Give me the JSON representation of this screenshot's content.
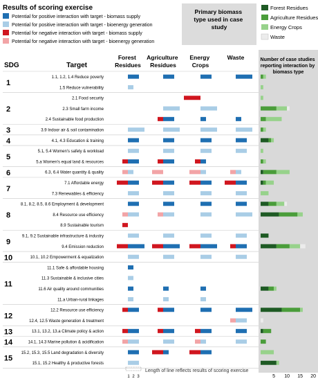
{
  "legend_scoring": {
    "title": "Results of scoring exercise",
    "items": [
      {
        "label": "Potential for positive interaction with target - biomass supply",
        "color": "#1f6fb2"
      },
      {
        "label": "Potential for positive interaction with target - bioenergy generation",
        "color": "#a9cde6"
      },
      {
        "label": "Potential for negative interaction with target - biomass supply",
        "color": "#d0161f"
      },
      {
        "label": "Potential for negative interaction with target - bioenergy generation",
        "color": "#f2a4a6"
      }
    ]
  },
  "legend_biomass": {
    "title": "Primary biomass type used in case study",
    "items": [
      {
        "label": "Forest Residues",
        "color": "#1e5a24"
      },
      {
        "label": "Agriculture Residues",
        "color": "#4a9d3a"
      },
      {
        "label": "Energy Crops",
        "color": "#97d28b"
      },
      {
        "label": "Waste",
        "color": "#ececec"
      }
    ]
  },
  "headers": {
    "sdg": "SDG",
    "target": "Target",
    "categories": [
      "Forest Residues",
      "Agriculture Residues",
      "Energy Crops",
      "Waste"
    ],
    "cases": "Number of case studies reporting interaction by biomass type"
  },
  "footer": {
    "scale_ticks": [
      "1",
      "2",
      "3"
    ],
    "note": "Length of line reflects results of scoring exercise"
  },
  "chart_data": {
    "type": "bar",
    "x_axis": {
      "ticks": [
        5,
        10,
        15,
        20
      ],
      "range": [
        0,
        21
      ]
    },
    "categories_biomass": [
      "Forest Residues",
      "Agriculture Residues",
      "Energy Crops",
      "Waste"
    ],
    "sdg_groups": [
      {
        "label": "1",
        "rows": [
          0,
          1
        ]
      },
      {
        "label": "2",
        "rows": [
          2,
          3,
          4
        ]
      },
      {
        "label": "3",
        "rows": [
          5
        ]
      },
      {
        "label": "4",
        "rows": [
          6
        ]
      },
      {
        "label": "5",
        "rows": [
          7,
          8
        ]
      },
      {
        "label": "6",
        "rows": [
          9
        ]
      },
      {
        "label": "7",
        "rows": [
          10,
          11
        ]
      },
      {
        "label": "8",
        "rows": [
          12,
          13,
          14
        ]
      },
      {
        "label": "9",
        "rows": [
          15,
          16
        ]
      },
      {
        "label": "10",
        "rows": [
          17
        ]
      },
      {
        "label": "11",
        "rows": [
          18,
          19,
          20,
          21
        ]
      },
      {
        "label": "12",
        "rows": [
          22,
          23
        ]
      },
      {
        "label": "13",
        "rows": [
          24
        ]
      },
      {
        "label": "14",
        "rows": [
          25
        ]
      },
      {
        "label": "15",
        "rows": [
          26,
          27
        ]
      }
    ],
    "rows": [
      {
        "target": "1.1, 1.2, 1.4 Reduce poverty",
        "scores": [
          {
            "n": 0,
            "p": 2
          },
          {
            "n": 0,
            "p": 2
          },
          {
            "n": 0,
            "p": 2
          },
          {
            "n": 0,
            "p": 3
          }
        ],
        "cases": [
          0,
          1,
          1,
          0
        ]
      },
      {
        "target": "1.5 Reduce vulnerability",
        "scores": [
          {
            "n": 0,
            "p": 1
          },
          {
            "n": 0,
            "p": 0
          },
          {
            "n": 0,
            "p": 0
          },
          {
            "n": 0,
            "p": 0
          }
        ],
        "cases": [
          0,
          0,
          1,
          0
        ]
      },
      {
        "target": "2.1 Food security",
        "scores": [
          {
            "n": 0,
            "p": 0
          },
          {
            "n": 0,
            "p": 0
          },
          {
            "n": 3,
            "p": 0
          },
          {
            "n": 0,
            "p": 0
          }
        ],
        "cases": [
          0,
          0,
          1,
          0
        ]
      },
      {
        "target": "2.3 Small farm income",
        "scores": [
          {
            "n": 0,
            "p": 0
          },
          {
            "n": 0,
            "p": 3
          },
          {
            "n": 0,
            "p": 3
          },
          {
            "n": 0,
            "p": 0
          }
        ],
        "cases": [
          0,
          6,
          4,
          1
        ]
      },
      {
        "target": "2.4 Sustainable food production",
        "scores": [
          {
            "n": 0,
            "p": 0
          },
          {
            "n": 1,
            "p": 2
          },
          {
            "n": 0,
            "p": 1
          },
          {
            "n": 0,
            "p": 1
          }
        ],
        "cases": [
          0,
          2,
          6,
          0
        ]
      },
      {
        "target": "3.9 Indoor air & soil contamination",
        "scores": [
          {
            "n": 0,
            "p": 3
          },
          {
            "n": 0,
            "p": 3
          },
          {
            "n": 0,
            "p": 3
          },
          {
            "n": 0,
            "p": 3
          }
        ],
        "cases": [
          0,
          1,
          1,
          0
        ]
      },
      {
        "target": "4.1, 4.3 Education & training",
        "scores": [
          {
            "n": 0,
            "p": 2
          },
          {
            "n": 0,
            "p": 2
          },
          {
            "n": 0,
            "p": 2
          },
          {
            "n": 0,
            "p": 2
          }
        ],
        "cases": [
          3,
          1,
          1,
          0
        ]
      },
      {
        "target": "5.1, 5.4 Women's safety & workload",
        "scores": [
          {
            "n": 0,
            "p": 2
          },
          {
            "n": 0,
            "p": 2
          },
          {
            "n": 0,
            "p": 2
          },
          {
            "n": 0,
            "p": 2
          }
        ],
        "cases": [
          0,
          0,
          1,
          0
        ]
      },
      {
        "target": "5.a Women's equal land & resources",
        "scores": [
          {
            "n": 1,
            "p": 2
          },
          {
            "n": 1,
            "p": 2
          },
          {
            "n": 1,
            "p": 1
          },
          {
            "n": 0,
            "p": 0
          }
        ],
        "cases": [
          0,
          1,
          1,
          0
        ]
      },
      {
        "target": "6.3, 6.4 Water quantity & quality",
        "scores": [
          {
            "n": 1,
            "p": 1
          },
          {
            "n": 2,
            "p": 0
          },
          {
            "n": 2,
            "p": 1
          },
          {
            "n": 1,
            "p": 1
          }
        ],
        "cases": [
          1,
          5,
          5,
          0
        ]
      },
      {
        "target": "7.1 Affordable energy",
        "scores": [
          {
            "n": 2,
            "p": 2
          },
          {
            "n": 2,
            "p": 2
          },
          {
            "n": 2,
            "p": 2
          },
          {
            "n": 2,
            "p": 2
          }
        ],
        "cases": [
          1,
          1,
          3,
          0
        ]
      },
      {
        "target": "7.3 Renewables & efficiency",
        "scores": [
          {
            "n": 0,
            "p": 2
          },
          {
            "n": 0,
            "p": 2
          },
          {
            "n": 0,
            "p": 2
          },
          {
            "n": 0,
            "p": 2
          }
        ],
        "cases": [
          0,
          0,
          3,
          0
        ]
      },
      {
        "target": "8.1, 8.2, 8.5, 8.6 Employment & development",
        "scores": [
          {
            "n": 0,
            "p": 2
          },
          {
            "n": 0,
            "p": 2
          },
          {
            "n": 0,
            "p": 2
          },
          {
            "n": 0,
            "p": 2
          }
        ],
        "cases": [
          3,
          3,
          3,
          1
        ]
      },
      {
        "target": "8.4 Resource use efficiency",
        "scores": [
          {
            "n": 1,
            "p": 2
          },
          {
            "n": 1,
            "p": 2
          },
          {
            "n": 0,
            "p": 2
          },
          {
            "n": 0,
            "p": 3
          }
        ],
        "cases": [
          7,
          7,
          2,
          0
        ]
      },
      {
        "target": "8.9 Sustainable tourism",
        "scores": [
          {
            "n": 1,
            "p": 0
          },
          {
            "n": 0,
            "p": 0
          },
          {
            "n": 0,
            "p": 0
          },
          {
            "n": 0,
            "p": 0
          }
        ],
        "cases": [
          0,
          0,
          0,
          0
        ]
      },
      {
        "target": "9.1, 9.2 Sustainable infrastructure & industry",
        "scores": [
          {
            "n": 0,
            "p": 2
          },
          {
            "n": 0,
            "p": 2
          },
          {
            "n": 0,
            "p": 2
          },
          {
            "n": 0,
            "p": 2
          }
        ],
        "cases": [
          3,
          0,
          0,
          0
        ]
      },
      {
        "target": "9.4 Emission reduction",
        "scores": [
          {
            "n": 2,
            "p": 3
          },
          {
            "n": 2,
            "p": 3
          },
          {
            "n": 2,
            "p": 3
          },
          {
            "n": 1,
            "p": 2
          }
        ],
        "cases": [
          6,
          5,
          4,
          2
        ]
      },
      {
        "target": "10.1, 10.2 Empowerment & equalization",
        "scores": [
          {
            "n": 0,
            "p": 2
          },
          {
            "n": 0,
            "p": 2
          },
          {
            "n": 0,
            "p": 2
          },
          {
            "n": 0,
            "p": 2
          }
        ],
        "cases": [
          0,
          0,
          0,
          0
        ]
      },
      {
        "target": "11.1 Safe & affordable housing",
        "scores": [
          {
            "n": 0,
            "p": 1
          },
          {
            "n": 0,
            "p": 0
          },
          {
            "n": 0,
            "p": 0
          },
          {
            "n": 0,
            "p": 0
          }
        ],
        "cases": [
          0,
          0,
          0,
          0
        ]
      },
      {
        "target": "11.3 Sustainable & inclusive cities",
        "scores": [
          {
            "n": 0,
            "p": 1
          },
          {
            "n": 0,
            "p": 0
          },
          {
            "n": 0,
            "p": 0
          },
          {
            "n": 0,
            "p": 0
          }
        ],
        "cases": [
          0,
          0,
          0,
          0
        ]
      },
      {
        "target": "11.6 Air quality around communities",
        "scores": [
          {
            "n": 0,
            "p": 1
          },
          {
            "n": 0,
            "p": 1
          },
          {
            "n": 0,
            "p": 1
          },
          {
            "n": 0,
            "p": 0
          }
        ],
        "cases": [
          3,
          2,
          1,
          0
        ]
      },
      {
        "target": "11.a Urban-rural linkages",
        "scores": [
          {
            "n": 0,
            "p": 1
          },
          {
            "n": 0,
            "p": 1
          },
          {
            "n": 0,
            "p": 1
          },
          {
            "n": 0,
            "p": 0
          }
        ],
        "cases": [
          0,
          0,
          0,
          0
        ]
      },
      {
        "target": "12.2 Resource use efficiency",
        "scores": [
          {
            "n": 1,
            "p": 2
          },
          {
            "n": 1,
            "p": 2
          },
          {
            "n": 0,
            "p": 2
          },
          {
            "n": 0,
            "p": 3
          }
        ],
        "cases": [
          8,
          7,
          1,
          0
        ]
      },
      {
        "target": "12.4, 12.5 Waste generation & treatment",
        "scores": [
          {
            "n": 0,
            "p": 0
          },
          {
            "n": 0,
            "p": 0
          },
          {
            "n": 0,
            "p": 0
          },
          {
            "n": 1,
            "p": 2
          }
        ],
        "cases": [
          0,
          0,
          0,
          1
        ]
      },
      {
        "target": "13.1, 13.2, 13.a Climate policy & action",
        "scores": [
          {
            "n": 1,
            "p": 2
          },
          {
            "n": 1,
            "p": 2
          },
          {
            "n": 1,
            "p": 2
          },
          {
            "n": 0,
            "p": 2
          }
        ],
        "cases": [
          1,
          3,
          0,
          0
        ]
      },
      {
        "target": "14.1, 14.3 Marine pollution & acidification",
        "scores": [
          {
            "n": 1,
            "p": 2
          },
          {
            "n": 0,
            "p": 2
          },
          {
            "n": 1,
            "p": 1
          },
          {
            "n": 0,
            "p": 2
          }
        ],
        "cases": [
          0,
          2,
          0,
          0
        ]
      },
      {
        "target": "15.2, 15.3, 15.5 Land degradation & diversity",
        "scores": [
          {
            "n": 0,
            "p": 2
          },
          {
            "n": 2,
            "p": 1
          },
          {
            "n": 2,
            "p": 2
          },
          {
            "n": 0,
            "p": 0
          }
        ],
        "cases": [
          0,
          0,
          5,
          0
        ]
      },
      {
        "target": "15.1, 15.2 Healthy & productive forests",
        "scores": [
          {
            "n": 0,
            "p": 2
          },
          {
            "n": 0,
            "p": 0
          },
          {
            "n": 0,
            "p": 0
          },
          {
            "n": 0,
            "p": 0
          }
        ],
        "cases": [
          6,
          0,
          1,
          0
        ]
      }
    ]
  }
}
